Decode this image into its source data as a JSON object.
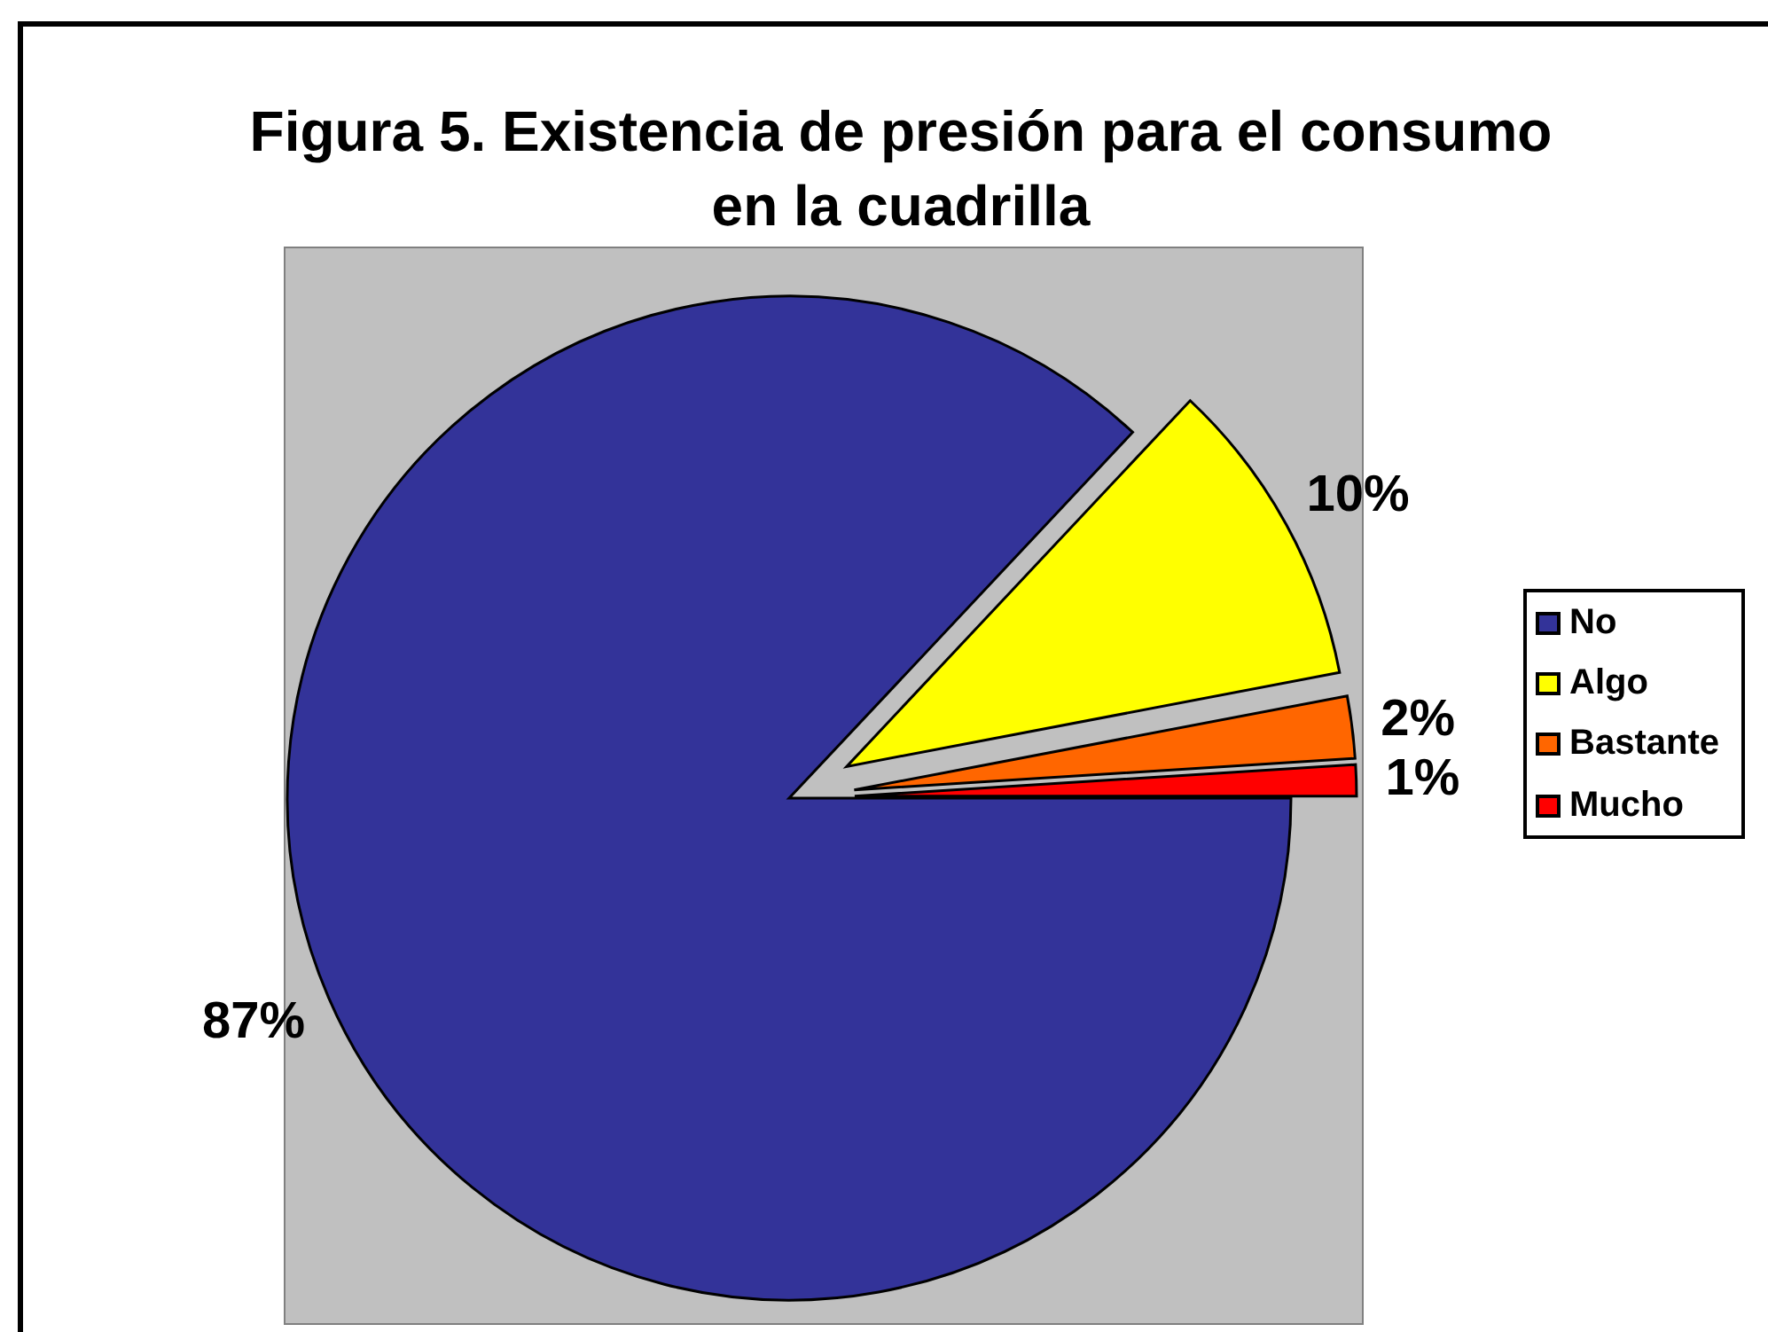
{
  "chart_data": {
    "type": "pie",
    "title": "Figura 5. Existencia de presión para el consumo en la cuadrilla",
    "categories": [
      "No",
      "Algo",
      "Bastante",
      "Mucho"
    ],
    "values": [
      87,
      10,
      2,
      1
    ],
    "colors": [
      "#333399",
      "#ffff00",
      "#ff6600",
      "#ff0000"
    ],
    "value_labels": [
      "87%",
      "10%",
      "2%",
      "1%"
    ],
    "legend": "right"
  }
}
